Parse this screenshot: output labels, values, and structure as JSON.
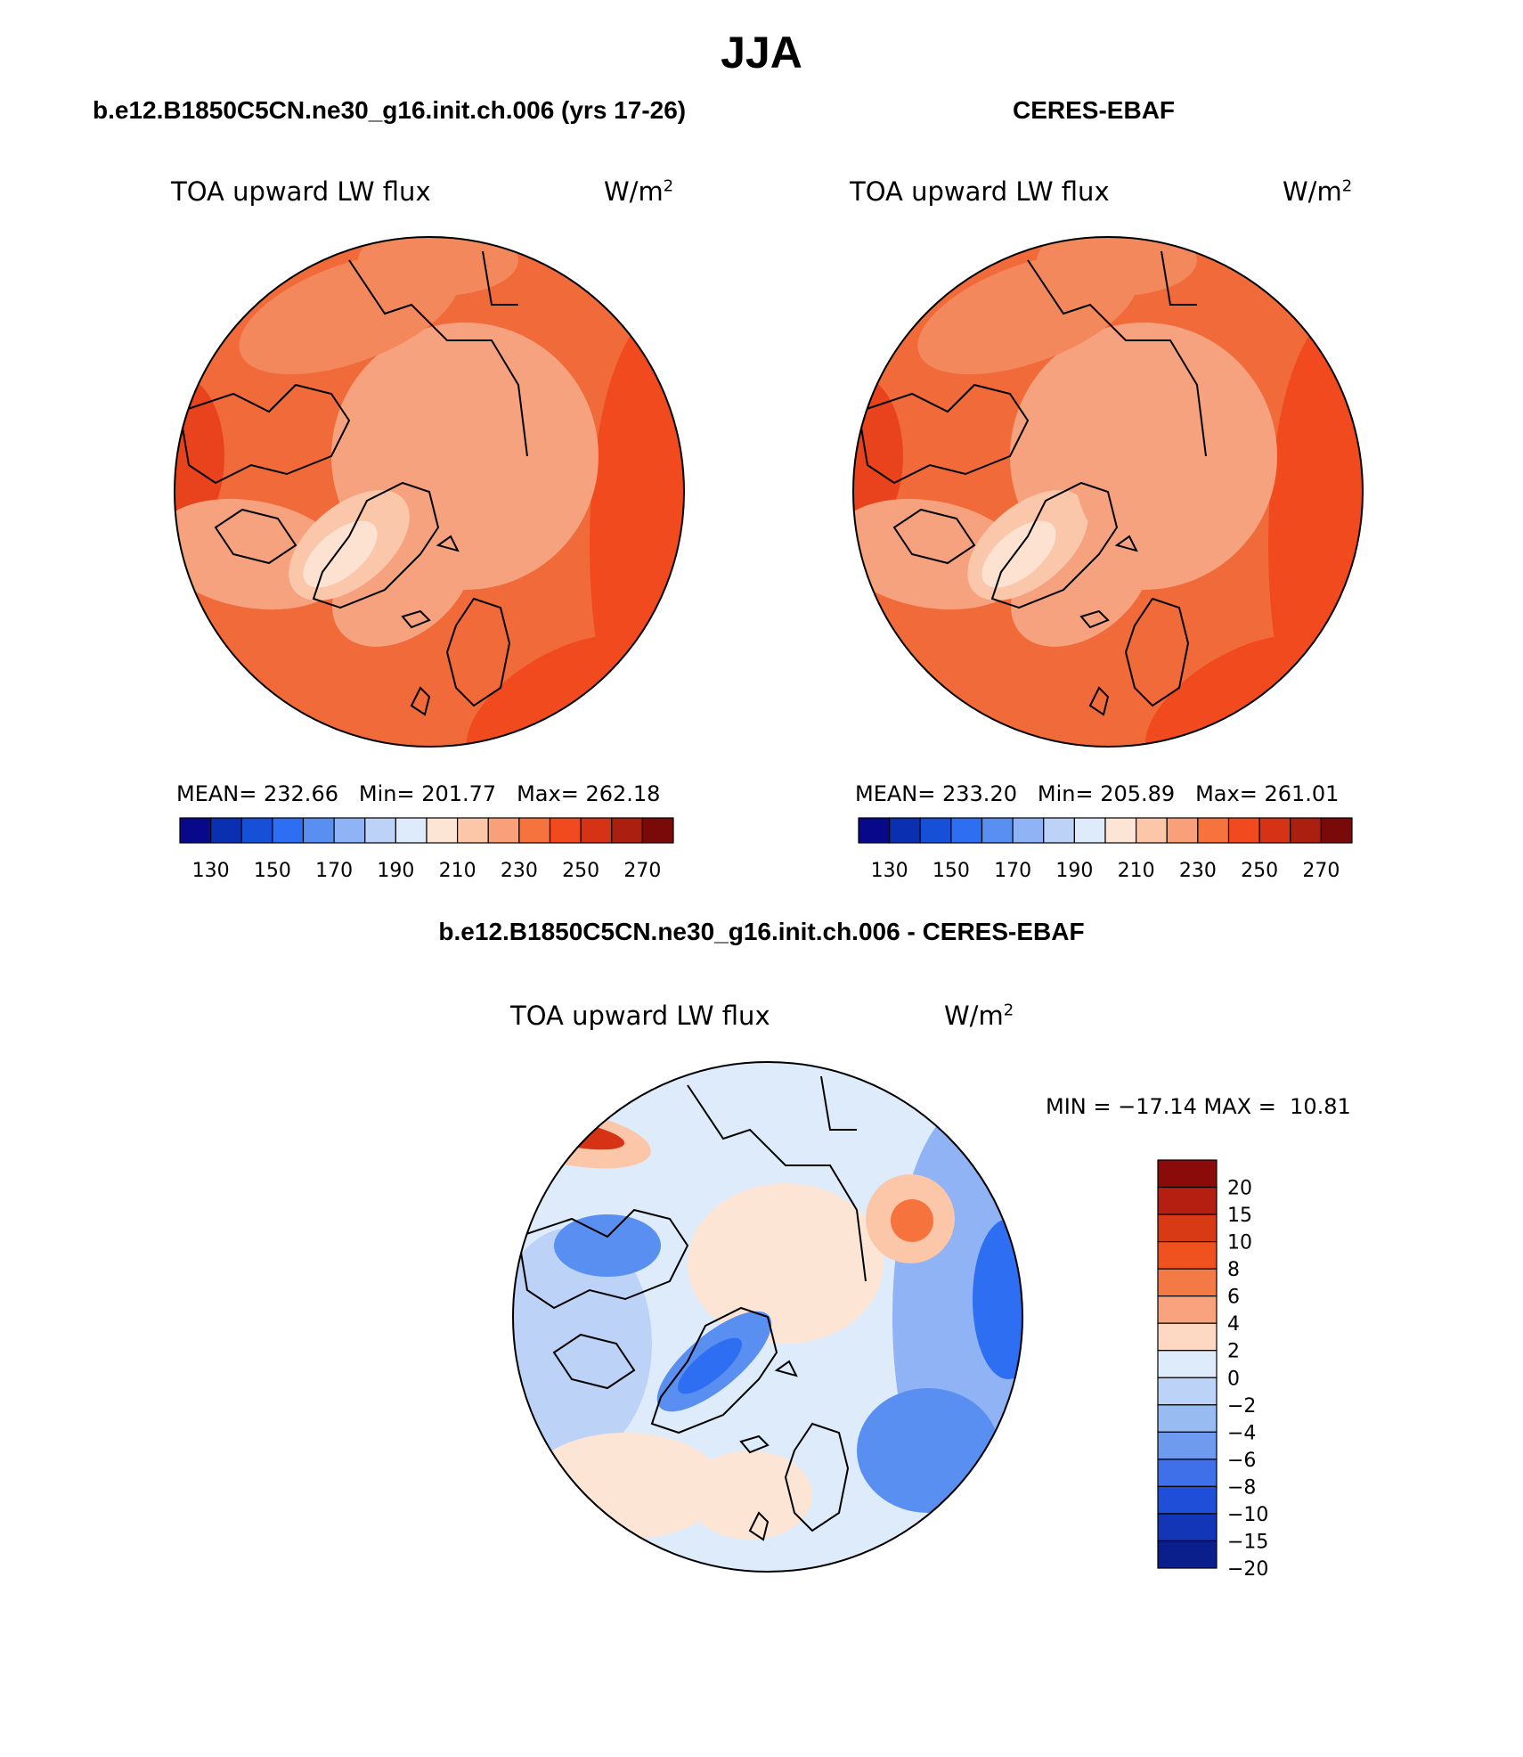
{
  "figure": {
    "season": "JJA",
    "model_name": "b.e12.B1850C5CN.ne30_g16.init.ch.006 (yrs 17-26)",
    "obs_name": "CERES-EBAF",
    "diff_title": "b.e12.B1850C5CN.ne30_g16.init.ch.006 - CERES-EBAF"
  },
  "panels": {
    "model": {
      "variable": "TOA upward LW flux",
      "units_base": "W/m",
      "units_exp": "2",
      "stats": {
        "mean_label": "MEAN=",
        "mean": "232.66",
        "min_label": "Min=",
        "min": "201.77",
        "max_label": "Max=",
        "max": "262.18"
      }
    },
    "obs": {
      "variable": "TOA upward LW flux",
      "units_base": "W/m",
      "units_exp": "2",
      "stats": {
        "mean_label": "MEAN=",
        "mean": "233.20",
        "min_label": "Min=",
        "min": "205.89",
        "max_label": "Max=",
        "max": "261.01"
      }
    },
    "diff": {
      "variable": "TOA upward LW flux",
      "units_base": "W/m",
      "units_exp": "2",
      "minmax_text": "MIN = −17.14 MAX =  10.81"
    }
  },
  "abs_colorbar": {
    "colors": [
      "#08088a",
      "#0a2fb0",
      "#1550d6",
      "#2e6ef2",
      "#5a8ff2",
      "#8fb3f4",
      "#bcd2f7",
      "#ddebfb",
      "#fde5d6",
      "#fcc6a8",
      "#f9a07a",
      "#f6733e",
      "#f14a1e",
      "#d63316",
      "#ab1f10",
      "#7a0a0a"
    ],
    "tick_labels": [
      "130",
      "150",
      "170",
      "190",
      "210",
      "230",
      "250",
      "270"
    ]
  },
  "diff_colorbar": {
    "colors": [
      "#8b0a0a",
      "#b51f12",
      "#d93a16",
      "#f0521f",
      "#f47a45",
      "#f9a27e",
      "#fdd8c2",
      "#ddebfb",
      "#bcd2f7",
      "#98bbf2",
      "#6f9bef",
      "#3f70ea",
      "#1f4fd8",
      "#1236b6",
      "#0b1f8c"
    ],
    "tick_labels": [
      "20",
      "15",
      "10",
      "8",
      "6",
      "4",
      "2",
      "0",
      "−2",
      "−4",
      "−6",
      "−8",
      "−10",
      "−15",
      "−20"
    ]
  },
  "map_palette": {
    "abs_fill": [
      "#f06a3a",
      "#f3885c",
      "#f7a27f",
      "#fbc7ab",
      "#fde2d2",
      "#f14a1e",
      "#e9431d"
    ],
    "diff_fill": [
      "#ddebfb",
      "#bcd2f7",
      "#8fb3f4",
      "#5a8ff2",
      "#2e6ef2",
      "#fde5d6",
      "#fcc6a8",
      "#f6733e",
      "#d63316"
    ]
  }
}
